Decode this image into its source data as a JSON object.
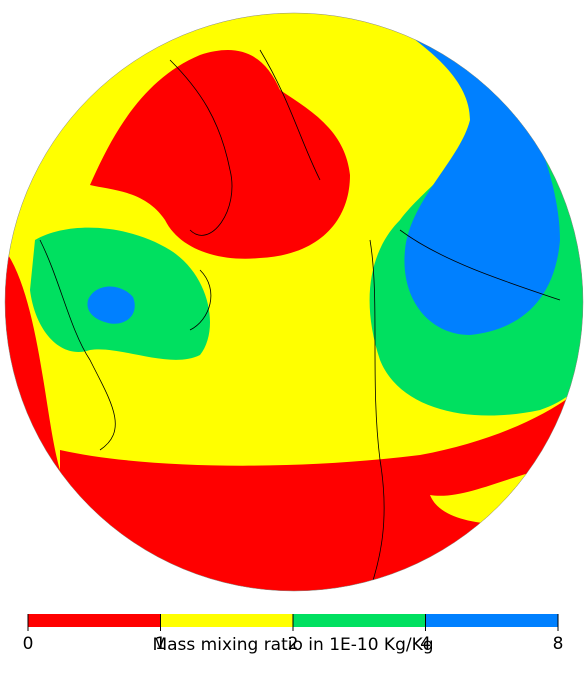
{
  "legend": {
    "title": "Mass mixing ratio in 1E-10 Kg/Kg",
    "ticks": [
      0,
      1,
      2,
      4,
      8
    ],
    "colors": [
      "#ff0000",
      "#ffff00",
      "#00e060",
      "#0080ff"
    ]
  }
}
